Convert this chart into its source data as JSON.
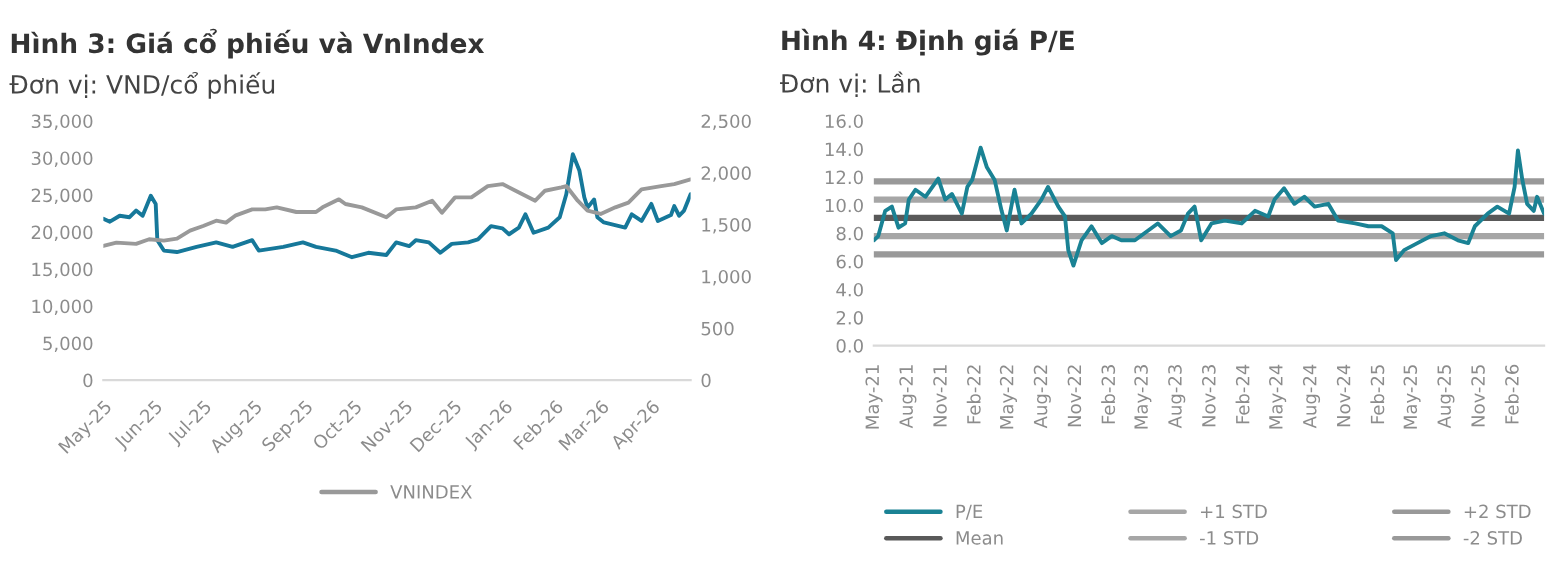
{
  "chart_data": [
    {
      "type": "line",
      "title": "Hình 3: Giá cổ phiếu và VnIndex",
      "subtitle": "Đơn vị: VND/cổ phiếu",
      "legend": "bottom",
      "grid": false,
      "xlim": [
        "2025-05-01",
        "2026-04-25"
      ],
      "xticks": [
        {
          "value": "2025-05-01",
          "label": "May-25"
        },
        {
          "value": "2025-06-01",
          "label": "Jun-25"
        },
        {
          "value": "2025-07-01",
          "label": "Jul-25"
        },
        {
          "value": "2025-08-01",
          "label": "Aug-25"
        },
        {
          "value": "2025-09-01",
          "label": "Sep-25"
        },
        {
          "value": "2025-10-01",
          "label": "Oct-25"
        },
        {
          "value": "2025-11-01",
          "label": "Nov-25"
        },
        {
          "value": "2025-12-01",
          "label": "Dec-25"
        },
        {
          "value": "2026-01-01",
          "label": "Jan-26"
        },
        {
          "value": "2026-02-01",
          "label": "Feb-26"
        },
        {
          "value": "2026-03-01",
          "label": "Mar-26"
        },
        {
          "value": "2026-04-01",
          "label": "Apr-26"
        }
      ],
      "ylim": [
        0,
        35000
      ],
      "yticks": [
        {
          "value": 0,
          "label": "0"
        },
        {
          "value": 5000,
          "label": "5,000"
        },
        {
          "value": 10000,
          "label": "10,000"
        },
        {
          "value": 15000,
          "label": "15,000"
        },
        {
          "value": 20000,
          "label": "20,000"
        },
        {
          "value": 25000,
          "label": "25,000"
        },
        {
          "value": 30000,
          "label": "30,000"
        },
        {
          "value": 35000,
          "label": "35,000"
        }
      ],
      "y2lim": [
        0,
        2500
      ],
      "y2ticks": [
        {
          "value": 0,
          "label": "0"
        },
        {
          "value": 500,
          "label": "500"
        },
        {
          "value": 1000,
          "label": "1,000"
        },
        {
          "value": 1500,
          "label": "1,500"
        },
        {
          "value": 2000,
          "label": "2,000"
        },
        {
          "value": 2500,
          "label": "2,500"
        }
      ],
      "series": [
        {
          "color": "#16789a",
          "x": [
            "2025-05-01",
            "2025-05-05",
            "2025-05-11",
            "2025-05-17",
            "2025-05-21",
            "2025-05-25",
            "2025-05-30",
            "2025-06-02",
            "2025-06-03",
            "2025-06-07",
            "2025-06-15",
            "2025-06-27",
            "2025-07-09",
            "2025-07-19",
            "2025-07-31",
            "2025-08-04",
            "2025-08-19",
            "2025-08-31",
            "2025-09-08",
            "2025-09-20",
            "2025-09-30",
            "2025-10-10",
            "2025-10-21",
            "2025-10-27",
            "2025-11-04",
            "2025-11-08",
            "2025-11-16",
            "2025-11-23",
            "2025-11-30",
            "2025-12-10",
            "2025-12-16",
            "2025-12-24",
            "2025-12-31",
            "2026-01-04",
            "2026-01-10",
            "2026-01-14",
            "2026-01-19",
            "2026-01-28",
            "2026-02-04",
            "2026-02-08",
            "2026-02-12",
            "2026-02-16",
            "2026-02-19",
            "2026-02-21",
            "2026-02-25",
            "2026-02-27",
            "2026-03-03",
            "2026-03-16",
            "2026-03-20",
            "2026-03-26",
            "2026-04-01",
            "2026-04-05",
            "2026-04-13",
            "2026-04-15",
            "2026-04-18",
            "2026-04-21",
            "2026-04-25"
          ],
          "values": [
            21800,
            21400,
            22200,
            22000,
            22900,
            22200,
            24900,
            23800,
            18900,
            17500,
            17300,
            18000,
            18600,
            18000,
            18900,
            17500,
            18000,
            18600,
            18000,
            17500,
            16600,
            17200,
            16900,
            18600,
            18100,
            18900,
            18600,
            17200,
            18400,
            18600,
            19000,
            20800,
            20500,
            19700,
            20600,
            22400,
            19900,
            20600,
            22000,
            25100,
            30500,
            28300,
            24700,
            23300,
            24400,
            22000,
            21300,
            20600,
            22400,
            21500,
            23800,
            21500,
            22300,
            23500,
            22200,
            22900,
            25100
          ]
        },
        {
          "name": "VNINDEX",
          "axis": "y2",
          "color": "#999999",
          "x": [
            "2025-05-01",
            "2025-05-09",
            "2025-05-21",
            "2025-05-29",
            "2025-06-07",
            "2025-06-15",
            "2025-06-23",
            "2025-07-01",
            "2025-07-09",
            "2025-07-15",
            "2025-07-21",
            "2025-07-31",
            "2025-08-08",
            "2025-08-15",
            "2025-08-27",
            "2025-09-08",
            "2025-09-12",
            "2025-09-22",
            "2025-09-26",
            "2025-10-06",
            "2025-10-21",
            "2025-10-27",
            "2025-11-08",
            "2025-11-18",
            "2025-11-24",
            "2025-12-02",
            "2025-12-12",
            "2025-12-22",
            "2025-12-31",
            "2026-01-08",
            "2026-01-20",
            "2026-01-26",
            "2026-02-05",
            "2026-02-08",
            "2026-02-15",
            "2026-02-21",
            "2026-03-01",
            "2026-03-10",
            "2026-03-18",
            "2026-03-26",
            "2026-04-07",
            "2026-04-15",
            "2026-04-25"
          ],
          "values": [
            1295,
            1327,
            1314,
            1359,
            1346,
            1365,
            1442,
            1487,
            1538,
            1519,
            1590,
            1647,
            1647,
            1667,
            1622,
            1622,
            1667,
            1744,
            1699,
            1667,
            1571,
            1647,
            1667,
            1731,
            1615,
            1763,
            1763,
            1872,
            1891,
            1827,
            1731,
            1827,
            1859,
            1872,
            1731,
            1635,
            1603,
            1667,
            1712,
            1840,
            1872,
            1891,
            1936
          ]
        }
      ]
    },
    {
      "type": "line",
      "title": "Hình 4: Định giá P/E",
      "subtitle": "Đơn vị: Lần",
      "legend": "bottom",
      "grid": false,
      "xlim": [
        "2021-05-01",
        "2026-04-25"
      ],
      "xticks": [
        {
          "value": "2021-05-01",
          "label": "May-21"
        },
        {
          "value": "2021-08-01",
          "label": "Aug-21"
        },
        {
          "value": "2021-11-01",
          "label": "Nov-21"
        },
        {
          "value": "2022-02-01",
          "label": "Feb-22"
        },
        {
          "value": "2022-05-01",
          "label": "May-22"
        },
        {
          "value": "2022-08-01",
          "label": "Aug-22"
        },
        {
          "value": "2022-11-01",
          "label": "Nov-22"
        },
        {
          "value": "2023-02-01",
          "label": "Feb-23"
        },
        {
          "value": "2023-05-01",
          "label": "May-23"
        },
        {
          "value": "2023-08-01",
          "label": "Aug-23"
        },
        {
          "value": "2023-11-01",
          "label": "Nov-23"
        },
        {
          "value": "2024-02-01",
          "label": "Feb-24"
        },
        {
          "value": "2024-05-01",
          "label": "May-24"
        },
        {
          "value": "2024-08-01",
          "label": "Aug-24"
        },
        {
          "value": "2024-11-01",
          "label": "Nov-24"
        },
        {
          "value": "2025-02-01",
          "label": "Feb-25"
        },
        {
          "value": "2025-05-01",
          "label": "May-25"
        },
        {
          "value": "2025-08-01",
          "label": "Aug-25"
        },
        {
          "value": "2025-11-01",
          "label": "Nov-25"
        },
        {
          "value": "2026-02-01",
          "label": "Feb-26"
        }
      ],
      "ylim": [
        0,
        16
      ],
      "yticks": [
        {
          "value": 0,
          "label": "0.0"
        },
        {
          "value": 2,
          "label": "2.0"
        },
        {
          "value": 4,
          "label": "4.0"
        },
        {
          "value": 6,
          "label": "6.0"
        },
        {
          "value": 8,
          "label": "8.0"
        },
        {
          "value": 10,
          "label": "10.0"
        },
        {
          "value": 12,
          "label": "12.0"
        },
        {
          "value": 14,
          "label": "14.0"
        },
        {
          "value": 16,
          "label": "16.0"
        }
      ],
      "series": [
        {
          "name": "P/E",
          "color": "#1a8294",
          "x": [
            "2021-05-01",
            "2021-05-13",
            "2021-06-01",
            "2021-06-19",
            "2021-07-07",
            "2021-07-25",
            "2021-08-04",
            "2021-08-22",
            "2021-09-18",
            "2021-10-23",
            "2021-11-11",
            "2021-11-29",
            "2021-12-26",
            "2022-01-10",
            "2022-01-23",
            "2022-02-15",
            "2022-03-04",
            "2022-03-25",
            "2022-04-13",
            "2022-04-27",
            "2022-05-18",
            "2022-06-06",
            "2022-07-03",
            "2022-07-30",
            "2022-08-17",
            "2022-09-14",
            "2022-10-02",
            "2022-10-11",
            "2022-10-25",
            "2022-11-16",
            "2022-12-13",
            "2023-01-10",
            "2023-02-06",
            "2023-03-04",
            "2023-04-10",
            "2023-05-16",
            "2023-06-11",
            "2023-07-16",
            "2023-08-13",
            "2023-09-01",
            "2023-09-19",
            "2023-10-07",
            "2023-11-04",
            "2023-12-10",
            "2024-01-25",
            "2024-03-01",
            "2024-04-06",
            "2024-04-23",
            "2024-05-19",
            "2024-06-16",
            "2024-07-13",
            "2024-08-10",
            "2024-09-16",
            "2024-10-13",
            "2024-11-28",
            "2025-01-03",
            "2025-02-08",
            "2025-03-10",
            "2025-03-19",
            "2025-04-10",
            "2025-05-16",
            "2025-06-22",
            "2025-07-28",
            "2025-09-03",
            "2025-10-01",
            "2025-10-19",
            "2025-11-23",
            "2025-12-19",
            "2026-01-20",
            "2026-02-04",
            "2026-02-13",
            "2026-02-25",
            "2026-03-10",
            "2026-03-28",
            "2026-04-06",
            "2026-04-25"
          ],
          "values": [
            7.5,
            7.8,
            9.6,
            9.9,
            8.4,
            8.7,
            10.4,
            11.1,
            10.6,
            11.9,
            10.4,
            10.8,
            9.4,
            11.3,
            11.8,
            14.1,
            12.7,
            11.8,
            9.6,
            8.2,
            11.1,
            8.7,
            9.4,
            10.4,
            11.3,
            9.9,
            9.2,
            6.8,
            5.7,
            7.5,
            8.5,
            7.3,
            7.8,
            7.5,
            7.5,
            8.2,
            8.7,
            7.8,
            8.2,
            9.4,
            9.9,
            7.5,
            8.7,
            8.9,
            8.7,
            9.6,
            9.2,
            10.4,
            11.2,
            10.1,
            10.6,
            9.9,
            10.1,
            8.9,
            8.7,
            8.5,
            8.5,
            8.0,
            6.1,
            6.8,
            7.3,
            7.8,
            8.0,
            7.5,
            7.3,
            8.5,
            9.4,
            9.9,
            9.4,
            11.3,
            13.9,
            11.8,
            10.1,
            9.6,
            10.6,
            9.4
          ]
        }
      ],
      "ref_lines": [
        {
          "axis": "y",
          "value": 9.1,
          "label": "Mean",
          "color": "#595959",
          "line_style": "solid"
        },
        {
          "axis": "y",
          "value": 10.4,
          "label": "+1 STD",
          "color": "#a6a6a6",
          "line_style": "solid"
        },
        {
          "axis": "y",
          "value": 7.8,
          "label": "-1 STD",
          "color": "#a6a6a6",
          "line_style": "solid"
        },
        {
          "axis": "y",
          "value": 11.7,
          "label": "+2 STD",
          "color": "#999999",
          "line_style": "solid"
        },
        {
          "axis": "y",
          "value": 6.5,
          "label": "-2 STD",
          "color": "#999999",
          "line_style": "solid"
        }
      ]
    }
  ]
}
